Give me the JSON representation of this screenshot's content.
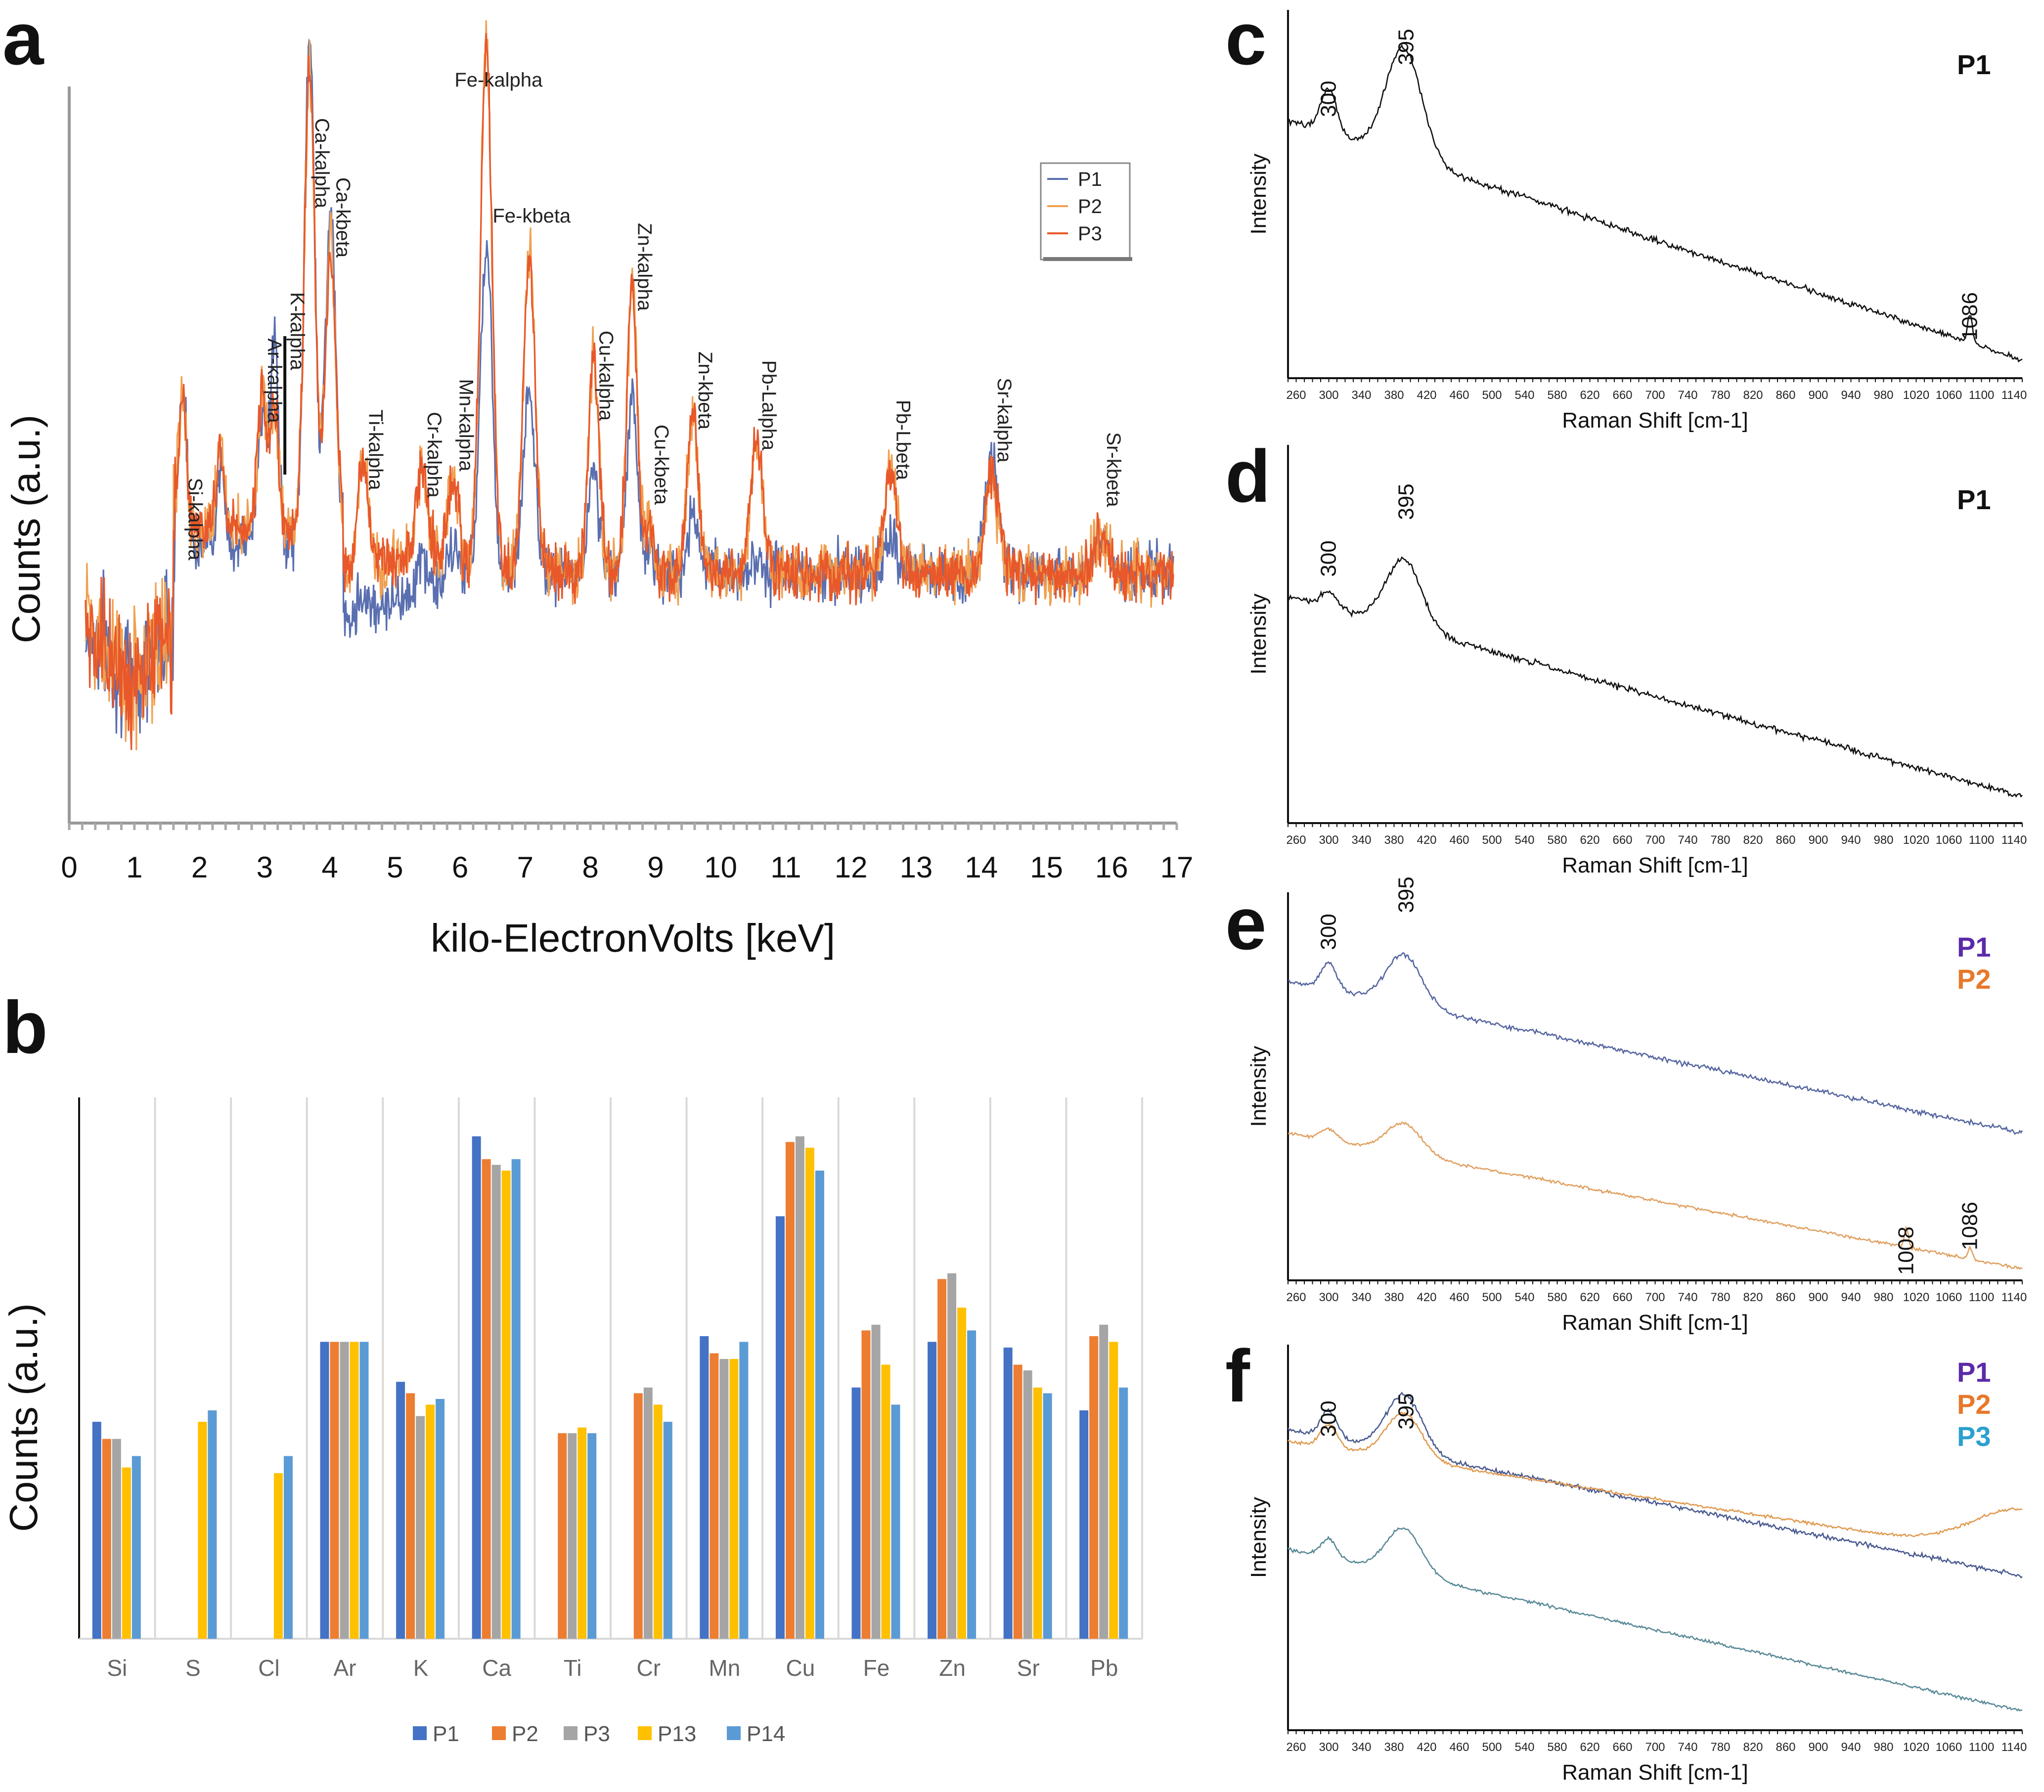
{
  "panels": {
    "a": {
      "letter": "a",
      "legend": [
        {
          "name": "P1",
          "color": "#5a6fb0"
        },
        {
          "name": "P2",
          "color": "#f0a050"
        },
        {
          "name": "P3",
          "color": "#e8582a"
        }
      ]
    },
    "b": {
      "letter": "b",
      "legend_colors": [
        "#4472c4",
        "#ed7d31",
        "#a5a5a5",
        "#ffc000",
        "#5b9bd5"
      ]
    },
    "c": {
      "letter": "c",
      "series_label": "P1"
    },
    "d": {
      "letter": "d",
      "series_label": "P1"
    },
    "e": {
      "letter": "e",
      "series_labels": [
        {
          "name": "P1",
          "color": "#5b2aa8"
        },
        {
          "name": "P2",
          "color": "#e8782a"
        }
      ]
    },
    "f": {
      "letter": "f",
      "series_labels": [
        {
          "name": "P1",
          "color": "#5b2aa8"
        },
        {
          "name": "P2",
          "color": "#e8782a"
        },
        {
          "name": "P3",
          "color": "#2aa0d0"
        }
      ]
    }
  },
  "chart_data": [
    {
      "id": "a",
      "type": "line",
      "title": "",
      "xlabel": "kilo-ElectronVolts [keV]",
      "ylabel": "Counts (a.u.)",
      "xlim": [
        0,
        17
      ],
      "x_ticks": [
        0,
        1,
        2,
        3,
        4,
        5,
        6,
        7,
        8,
        9,
        10,
        11,
        12,
        13,
        14,
        15,
        16,
        17
      ],
      "legend": [
        "P1",
        "P2",
        "P3"
      ],
      "annotations": [
        {
          "text": "Si-kalpha",
          "x": 1.74
        },
        {
          "text": "Ar-kalpha",
          "x": 2.96
        },
        {
          "text": "K-kalpha",
          "x": 3.31
        },
        {
          "text": "Ca-kalpha",
          "x": 3.69
        },
        {
          "text": "Ca-kbeta",
          "x": 4.01
        },
        {
          "text": "Ti-kalpha",
          "x": 4.51
        },
        {
          "text": "Cr-kalpha",
          "x": 5.41
        },
        {
          "text": "Mn-kalpha",
          "x": 5.9
        },
        {
          "text": "Fe-kalpha",
          "x": 6.4
        },
        {
          "text": "Fe-kbeta",
          "x": 7.06
        },
        {
          "text": "Cu-kalpha",
          "x": 8.05
        },
        {
          "text": "Zn-kalpha",
          "x": 8.64
        },
        {
          "text": "Cu-kbeta",
          "x": 8.9
        },
        {
          "text": "Zn-kbeta",
          "x": 9.57
        },
        {
          "text": "Pb-Lalpha",
          "x": 10.55
        },
        {
          "text": "Pb-Lbeta",
          "x": 12.61
        },
        {
          "text": "Sr-kalpha",
          "x": 14.16
        },
        {
          "text": "Sr-kbeta",
          "x": 15.84
        }
      ]
    },
    {
      "id": "b",
      "type": "bar",
      "title": "",
      "ylabel": "Counts (a.u.)",
      "categories": [
        "Si",
        "S",
        "Cl",
        "Ar",
        "K",
        "Ca",
        "Ti",
        "Cr",
        "Mn",
        "Cu",
        "Fe",
        "Zn",
        "Sr",
        "Pb"
      ],
      "ylim": [
        0,
        100
      ],
      "series": [
        {
          "name": "P1",
          "values": [
            38,
            null,
            null,
            52,
            45,
            88,
            null,
            null,
            53,
            74,
            44,
            52,
            51,
            40
          ]
        },
        {
          "name": "P2",
          "values": [
            35,
            null,
            null,
            52,
            43,
            84,
            36,
            43,
            50,
            87,
            54,
            63,
            48,
            53
          ]
        },
        {
          "name": "P3",
          "values": [
            35,
            null,
            null,
            52,
            39,
            83,
            36,
            44,
            49,
            88,
            55,
            64,
            47,
            55
          ]
        },
        {
          "name": "P13",
          "values": [
            30,
            38,
            29,
            52,
            41,
            82,
            37,
            41,
            49,
            86,
            48,
            58,
            44,
            52
          ]
        },
        {
          "name": "P14",
          "values": [
            32,
            40,
            32,
            52,
            42,
            84,
            36,
            38,
            52,
            82,
            41,
            54,
            43,
            44
          ]
        }
      ]
    },
    {
      "id": "c",
      "type": "line",
      "xlabel": "Raman Shift [cm-1]",
      "ylabel": "Intensity",
      "xlim": [
        250,
        1150
      ],
      "x_ticks": [
        260,
        300,
        340,
        380,
        420,
        460,
        500,
        540,
        580,
        620,
        660,
        700,
        740,
        780,
        820,
        860,
        900,
        940,
        980,
        1020,
        1060,
        1100,
        1140
      ],
      "peaks": [
        "300",
        "395",
        "1086"
      ]
    },
    {
      "id": "d",
      "type": "line",
      "xlabel": "Raman Shift [cm-1]",
      "ylabel": "Intensity",
      "xlim": [
        250,
        1150
      ],
      "x_ticks": [
        260,
        300,
        340,
        380,
        420,
        460,
        500,
        540,
        580,
        620,
        660,
        700,
        740,
        780,
        820,
        860,
        900,
        940,
        980,
        1020,
        1060,
        1100,
        1140
      ],
      "peaks": [
        "300",
        "395"
      ]
    },
    {
      "id": "e",
      "type": "line",
      "xlabel": "Raman Shift [cm-1]",
      "ylabel": "Intensity",
      "xlim": [
        250,
        1150
      ],
      "x_ticks": [
        260,
        300,
        340,
        380,
        420,
        460,
        500,
        540,
        580,
        620,
        660,
        700,
        740,
        780,
        820,
        860,
        900,
        940,
        980,
        1020,
        1060,
        1100,
        1140
      ],
      "peaks": [
        "300",
        "395",
        "1008",
        "1086"
      ]
    },
    {
      "id": "f",
      "type": "line",
      "xlabel": "Raman Shift [cm-1]",
      "ylabel": "Intensity",
      "xlim": [
        250,
        1150
      ],
      "x_ticks": [
        260,
        300,
        340,
        380,
        420,
        460,
        500,
        540,
        580,
        620,
        660,
        700,
        740,
        780,
        820,
        860,
        900,
        940,
        980,
        1020,
        1060,
        1100,
        1140
      ],
      "peaks": [
        "300",
        "395"
      ]
    }
  ]
}
